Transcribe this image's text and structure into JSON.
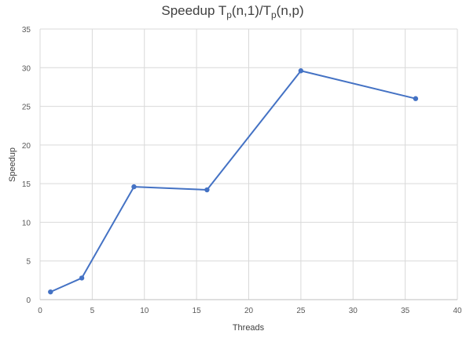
{
  "chart_data": {
    "type": "line",
    "title_main": "Speedup T",
    "title_sub1": "p",
    "title_mid": "(n,1)/T",
    "title_sub2": "p",
    "title_end": "(n,p)",
    "xlabel": "Threads",
    "ylabel": "Speedup",
    "xlim": [
      0,
      40
    ],
    "ylim": [
      0,
      35
    ],
    "x_ticks": [
      0,
      5,
      10,
      15,
      20,
      25,
      30,
      35,
      40
    ],
    "y_ticks": [
      0,
      5,
      10,
      15,
      20,
      25,
      30,
      35
    ],
    "grid": true,
    "series": [
      {
        "color": "#4472C4",
        "x": [
          1,
          4,
          9,
          16,
          25,
          36
        ],
        "y": [
          1,
          2.8,
          14.6,
          14.2,
          29.6,
          26.0
        ]
      }
    ]
  }
}
